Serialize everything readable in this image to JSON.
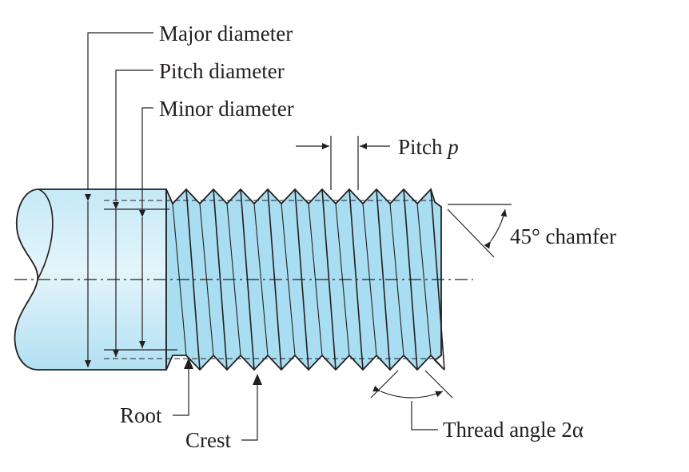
{
  "colors": {
    "shaft_fill": "#b9e4f4",
    "shaft_fill_light": "#dff3fb",
    "thread_fill": "#a6dcf0",
    "line": "#231f20"
  },
  "labels": {
    "major_diameter": "Major diameter",
    "pitch_diameter": "Pitch diameter",
    "minor_diameter": "Minor diameter",
    "pitch": "Pitch ",
    "pitch_symbol": "p",
    "chamfer": "45° chamfer",
    "root": "Root",
    "crest": "Crest",
    "thread_angle": "Thread angle 2α"
  }
}
